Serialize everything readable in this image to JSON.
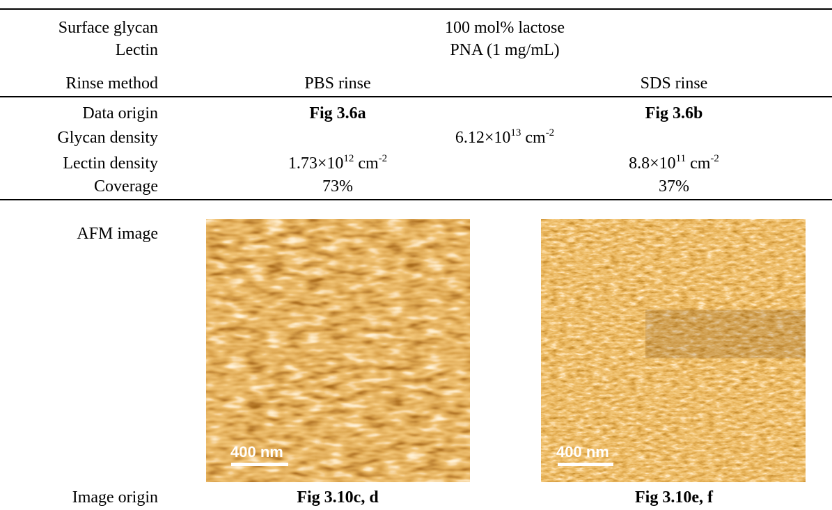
{
  "table": {
    "rows": [
      {
        "label": "Surface glycan",
        "span": "100 mol% lactose"
      },
      {
        "label": "Lectin",
        "span": "PNA (1 mg/mL)"
      },
      {
        "label": "Rinse method",
        "cells": [
          "PBS rinse",
          "SDS rinse"
        ]
      },
      {
        "label": "Data origin",
        "cells": [
          "Fig 3.6a",
          "Fig 3.6b"
        ]
      },
      {
        "label": "Glycan density",
        "span": {
          "mantissa": "6.12×10",
          "exponent": "13",
          "unit": " cm",
          "unit_exponent": "-2"
        }
      },
      {
        "label": "Lectin density",
        "cells": [
          {
            "mantissa": "1.73×10",
            "exponent": "12",
            "unit": " cm",
            "unit_exponent": "-2"
          },
          {
            "mantissa": "8.8×10",
            "exponent": "11",
            "unit": " cm",
            "unit_exponent": "-2"
          }
        ]
      },
      {
        "label": "Coverage",
        "cells": [
          "73%",
          "37%"
        ]
      },
      {
        "label": "AFM image",
        "images": [
          {
            "scale_bar": "400 nm"
          },
          {
            "scale_bar": "400 nm"
          }
        ]
      },
      {
        "label": "Image origin",
        "cells": [
          "Fig 3.10c, d",
          "Fig 3.10e, f"
        ]
      }
    ]
  }
}
